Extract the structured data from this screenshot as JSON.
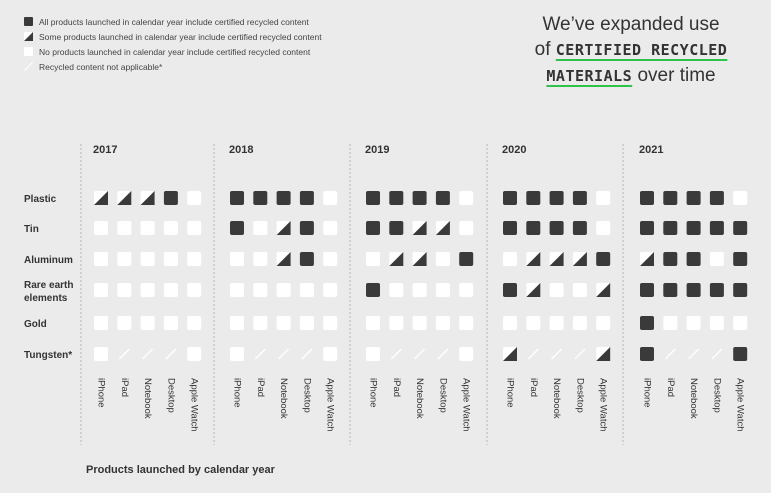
{
  "legend": [
    {
      "type": "full",
      "label": "All products launched in calendar year include certified recycled content"
    },
    {
      "type": "half",
      "label": "Some products launched in calendar year include certified recycled content"
    },
    {
      "type": "none",
      "label": "No products launched in calendar year include certified recycled content"
    },
    {
      "type": "na",
      "label": "Recycled content not applicable*"
    }
  ],
  "headline": {
    "line1": "We’ve expanded use",
    "line2_prefix": "of ",
    "highlight1": "CERTIFIED RECYCLED",
    "highlight2": "MATERIALS",
    "line3_suffix": " over time"
  },
  "colors": {
    "full": "#3a3a3a",
    "none": "#ffffff",
    "accent": "#2fc34b"
  },
  "chart_data": {
    "type": "table",
    "xlabel": "Products launched by calendar year",
    "years": [
      "2017",
      "2018",
      "2019",
      "2020",
      "2021"
    ],
    "products": [
      "iPhone",
      "iPad",
      "Notebook",
      "Desktop",
      "Apple Watch"
    ],
    "materials": [
      "Plastic",
      "Tin",
      "Aluminum",
      "Rare earth elements",
      "Gold",
      "Tungsten*"
    ],
    "status_key": {
      "F": "all",
      "H": "some",
      "E": "none",
      "N": "not applicable"
    },
    "values": {
      "2017": {
        "Plastic": [
          "H",
          "H",
          "H",
          "F",
          "E"
        ],
        "Tin": [
          "E",
          "E",
          "E",
          "E",
          "E"
        ],
        "Aluminum": [
          "E",
          "E",
          "E",
          "E",
          "E"
        ],
        "Rare earth elements": [
          "E",
          "E",
          "E",
          "E",
          "E"
        ],
        "Gold": [
          "E",
          "E",
          "E",
          "E",
          "E"
        ],
        "Tungsten*": [
          "E",
          "N",
          "N",
          "N",
          "E"
        ]
      },
      "2018": {
        "Plastic": [
          "F",
          "F",
          "F",
          "F",
          "E"
        ],
        "Tin": [
          "F",
          "E",
          "H",
          "F",
          "E"
        ],
        "Aluminum": [
          "E",
          "E",
          "H",
          "F",
          "E"
        ],
        "Rare earth elements": [
          "E",
          "E",
          "E",
          "E",
          "E"
        ],
        "Gold": [
          "E",
          "E",
          "E",
          "E",
          "E"
        ],
        "Tungsten*": [
          "E",
          "N",
          "N",
          "N",
          "E"
        ]
      },
      "2019": {
        "Plastic": [
          "F",
          "F",
          "F",
          "F",
          "E"
        ],
        "Tin": [
          "F",
          "F",
          "H",
          "H",
          "E"
        ],
        "Aluminum": [
          "E",
          "H",
          "H",
          "E",
          "F"
        ],
        "Rare earth elements": [
          "F",
          "E",
          "E",
          "E",
          "E"
        ],
        "Gold": [
          "E",
          "E",
          "E",
          "E",
          "E"
        ],
        "Tungsten*": [
          "E",
          "N",
          "N",
          "N",
          "E"
        ]
      },
      "2020": {
        "Plastic": [
          "F",
          "F",
          "F",
          "F",
          "E"
        ],
        "Tin": [
          "F",
          "F",
          "F",
          "F",
          "E"
        ],
        "Aluminum": [
          "E",
          "H",
          "H",
          "H",
          "F"
        ],
        "Rare earth elements": [
          "F",
          "H",
          "E",
          "E",
          "H"
        ],
        "Gold": [
          "E",
          "E",
          "E",
          "E",
          "E"
        ],
        "Tungsten*": [
          "H",
          "N",
          "N",
          "N",
          "H"
        ]
      },
      "2021": {
        "Plastic": [
          "F",
          "F",
          "F",
          "F",
          "E"
        ],
        "Tin": [
          "F",
          "F",
          "F",
          "F",
          "F"
        ],
        "Aluminum": [
          "H",
          "F",
          "F",
          "E",
          "F"
        ],
        "Rare earth elements": [
          "F",
          "F",
          "F",
          "F",
          "F"
        ],
        "Gold": [
          "F",
          "E",
          "E",
          "E",
          "E"
        ],
        "Tungsten*": [
          "F",
          "N",
          "N",
          "N",
          "F"
        ]
      }
    }
  }
}
